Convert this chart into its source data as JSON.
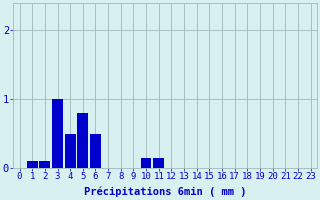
{
  "hours": [
    0,
    1,
    2,
    3,
    4,
    5,
    6,
    7,
    8,
    9,
    10,
    11,
    12,
    13,
    14,
    15,
    16,
    17,
    18,
    19,
    20,
    21,
    22,
    23
  ],
  "values": [
    0.0,
    0.1,
    0.1,
    1.0,
    0.5,
    0.8,
    0.5,
    0.0,
    0.0,
    0.0,
    0.15,
    0.15,
    0.0,
    0.0,
    0.0,
    0.0,
    0.0,
    0.0,
    0.0,
    0.0,
    0.0,
    0.0,
    0.0,
    0.0
  ],
  "xlabel": "Précipitations 6min ( mm )",
  "ylim": [
    0,
    2.4
  ],
  "yticks": [
    0,
    1,
    2
  ],
  "bar_color": "#0000cc",
  "bg_color": "#d8f0f0",
  "grid_color": "#a0b8b8",
  "text_color": "#0000cc",
  "xlabel_fontsize": 7.5,
  "tick_fontsize": 6.5
}
